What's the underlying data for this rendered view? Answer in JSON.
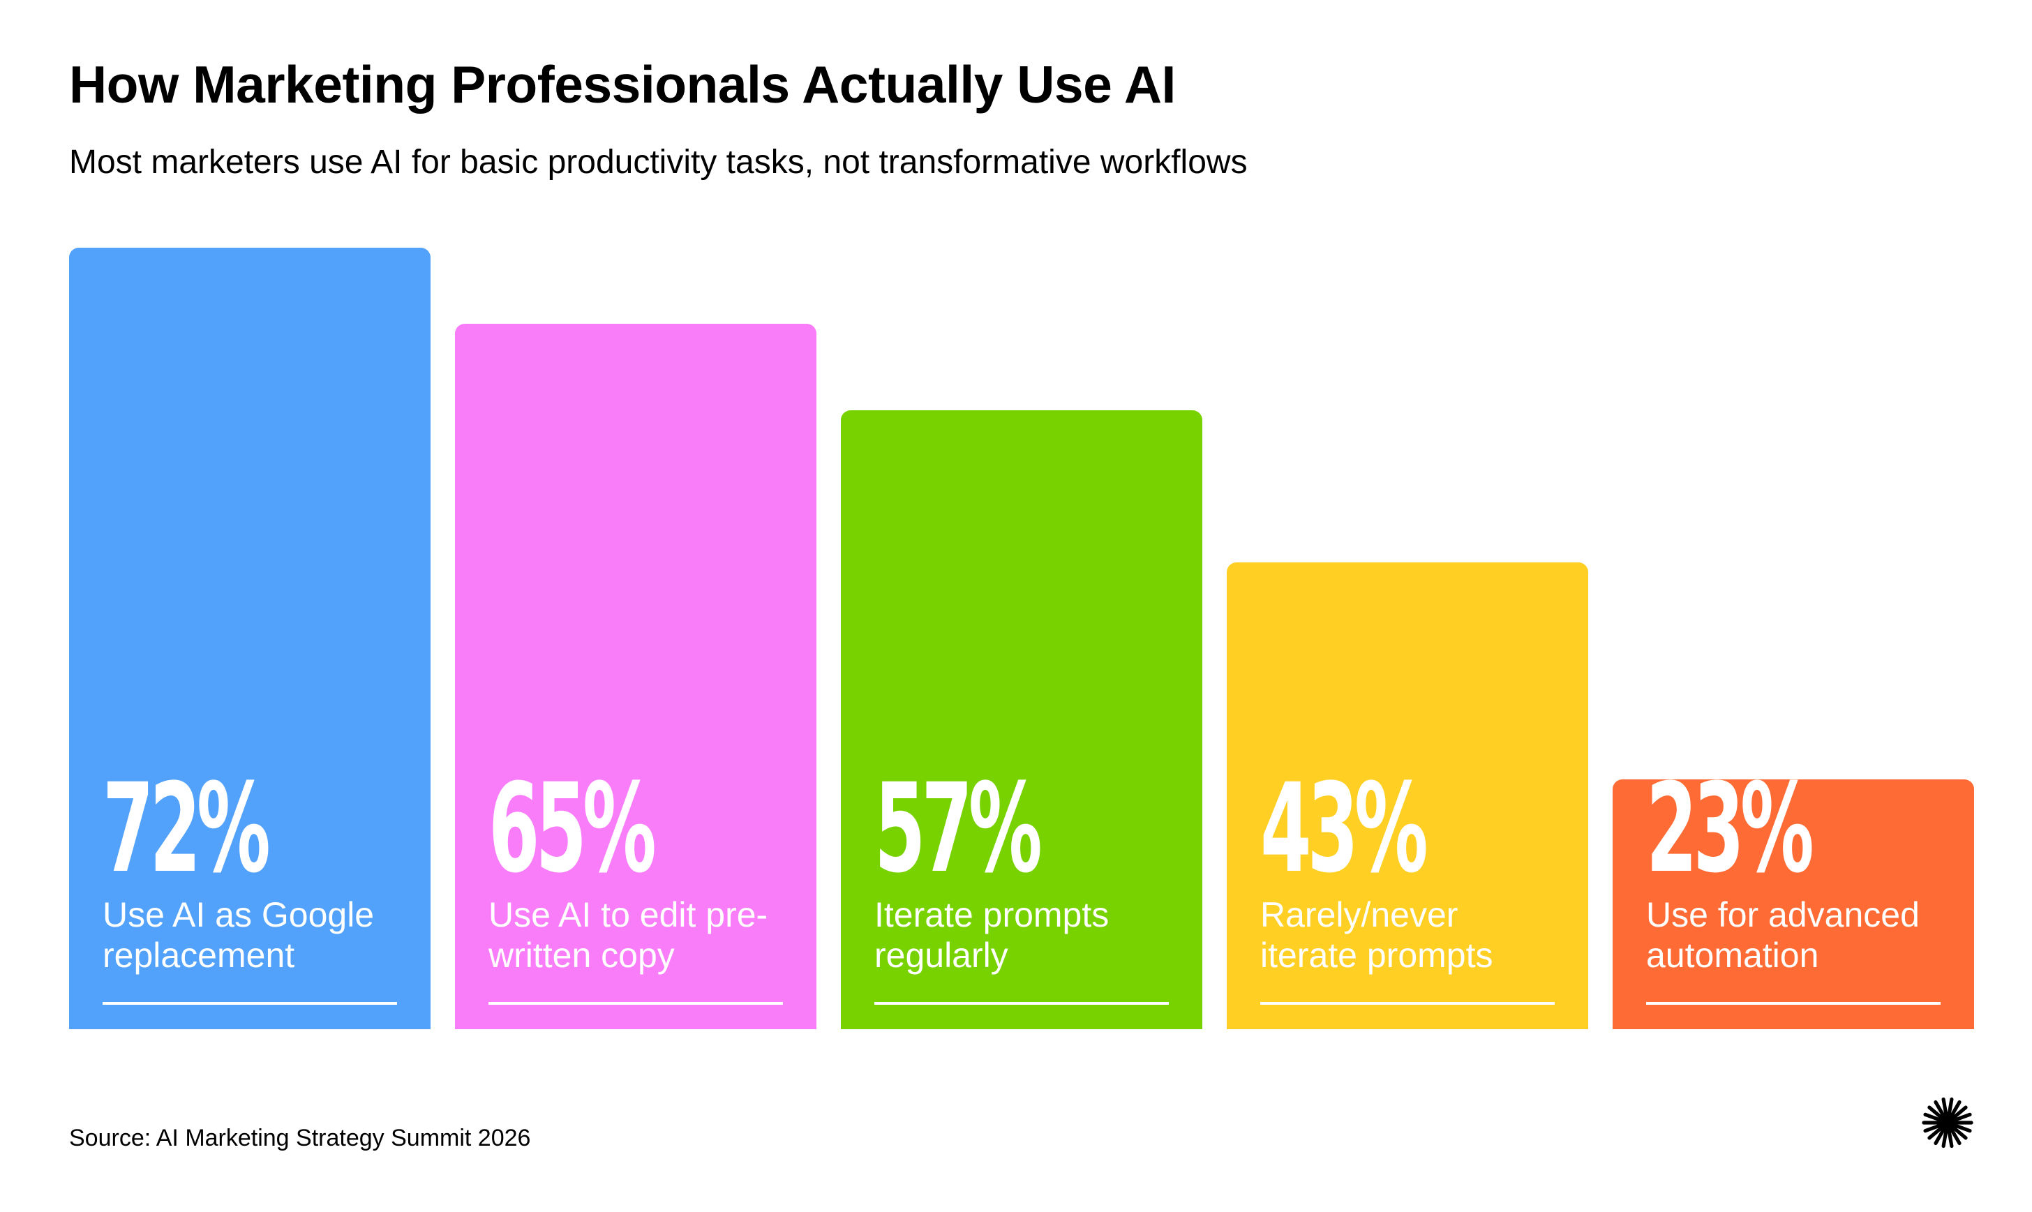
{
  "title": "How Marketing Professionals Actually Use AI",
  "subtitle": "Most marketers use AI for basic productivity tasks, not transformative workflows",
  "source": "Source: AI Marketing Strategy Summit 2026",
  "colors": {
    "background": "#ffffff",
    "text": "#000000",
    "bar_text": "#ffffff",
    "logo": "#000000"
  },
  "icons": {
    "logo": "starburst-icon"
  },
  "chart_data": {
    "type": "bar",
    "orientation": "vertical",
    "categories": [
      "Use AI as Google replacement",
      "Use AI to edit pre-written copy",
      "Iterate prompts regularly",
      "Rarely/never iterate prompts",
      "Use for advanced automation"
    ],
    "values": [
      72,
      65,
      57,
      43,
      23
    ],
    "unit": "%",
    "value_labels": [
      "72%",
      "65%",
      "57%",
      "43%",
      "23%"
    ],
    "label_lines": [
      [
        "Use AI as Google",
        "replacement"
      ],
      [
        "Use AI to edit pre-",
        "written copy"
      ],
      [
        "Iterate prompts",
        "regularly"
      ],
      [
        "Rarely/never",
        "iterate prompts"
      ],
      [
        "Use for advanced",
        "automation"
      ]
    ],
    "bar_colors": [
      "#52A2FB",
      "#F97DF9",
      "#77D200",
      "#FFCF23",
      "#FF6B35"
    ],
    "ylim": [
      0,
      72
    ],
    "title": "How Marketing Professionals Actually Use AI",
    "subtitle": "Most marketers use AI for basic productivity tasks, not transformative workflows",
    "grid": false,
    "legend": "none"
  }
}
